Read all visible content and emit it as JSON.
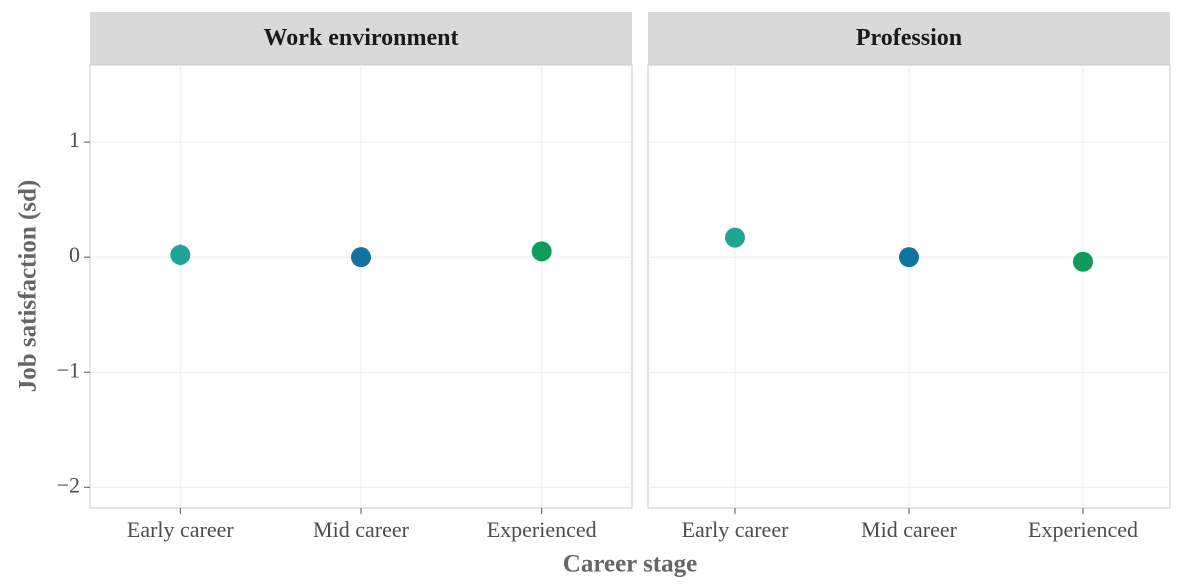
{
  "chart_data": [
    {
      "type": "scatter",
      "title": "Work environment",
      "ylabel": "Job satisfaction (sd)",
      "xlabel": "Career stage",
      "categories": [
        "Early career",
        "Mid career",
        "Experienced"
      ],
      "values": [
        0.02,
        0.0,
        0.05
      ],
      "errors": [
        0.09,
        0.04,
        0.06
      ],
      "colors": [
        "#20a496",
        "#1272a0",
        "#0f9b5b"
      ],
      "ylim": [
        -2.18,
        1.67
      ],
      "yticks": [
        {
          "value": -2,
          "label": "−2"
        },
        {
          "value": -1,
          "label": "−1"
        },
        0,
        1
      ],
      "grid": true
    },
    {
      "type": "scatter",
      "title": "Profession",
      "categories": [
        "Early career",
        "Mid career",
        "Experienced"
      ],
      "values": [
        0.17,
        0.0,
        -0.04
      ],
      "errors": [
        0.08,
        0.03,
        0.03
      ],
      "colors": [
        "#20a496",
        "#1272a0",
        "#0f9b5b"
      ],
      "ylim": [
        -2.18,
        1.67
      ],
      "yticks": [
        {
          "value": -2,
          "label": "−2"
        },
        {
          "value": -1,
          "label": "−1"
        },
        0,
        1
      ],
      "grid": true
    }
  ]
}
